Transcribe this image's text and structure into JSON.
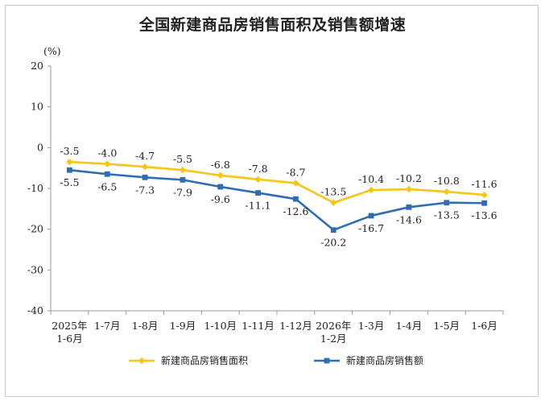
{
  "chart_data": {
    "type": "line",
    "title": "全国新建商品房销售面积及销售额增速",
    "unit": "(%)",
    "categories": [
      "2025年\n1-6月",
      "1-7月",
      "1-8月",
      "1-9月",
      "1-10月",
      "1-11月",
      "1-12月",
      "2026年\n1-2月",
      "1-3月",
      "1-4月",
      "1-5月",
      "1-6月"
    ],
    "ylim": [
      -40,
      20
    ],
    "yticks": [
      20,
      10,
      0,
      -10,
      -20,
      -30,
      -40
    ],
    "grid": false,
    "legend_position": "bottom",
    "series": [
      {
        "name": "新建商品房销售面积",
        "color": "#F5C518",
        "marker": "diamond",
        "values": [
          -3.5,
          -4.0,
          -4.7,
          -5.5,
          -6.8,
          -7.8,
          -8.7,
          -13.5,
          -10.4,
          -10.2,
          -10.8,
          -11.6
        ],
        "labels": [
          "-3.5",
          "-4.0",
          "-4.7",
          "-5.5",
          "-6.8",
          "-7.8",
          "-8.7",
          "-13.5",
          "-10.4",
          "-10.2",
          "-10.8",
          "-11.6"
        ]
      },
      {
        "name": "新建商品房销售额",
        "color": "#2E6DB4",
        "marker": "square",
        "values": [
          -5.5,
          -6.5,
          -7.3,
          -7.9,
          -9.6,
          -11.1,
          -12.6,
          -20.2,
          -16.7,
          -14.6,
          -13.5,
          -13.6
        ],
        "labels": [
          "-5.5",
          "-6.5",
          "-7.3",
          "-7.9",
          "-9.6",
          "-11.1",
          "-12.6",
          "-20.2",
          "-16.7",
          "-14.6",
          "-13.5",
          "-13.6"
        ]
      }
    ]
  }
}
